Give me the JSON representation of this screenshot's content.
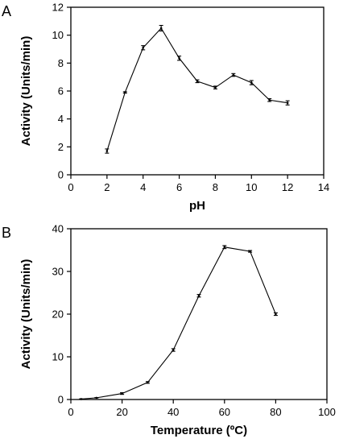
{
  "chart_data": [
    {
      "panel": "A",
      "type": "line",
      "xlabel": "pH",
      "ylabel": "Activity (Units/min)",
      "xlim": [
        0,
        14
      ],
      "ylim": [
        0,
        12
      ],
      "xticks": [
        "0",
        "2",
        "4",
        "6",
        "8",
        "10",
        "12",
        "14"
      ],
      "yticks": [
        "0",
        "2",
        "4",
        "6",
        "8",
        "10",
        "12"
      ],
      "grid": false,
      "series": [
        {
          "x": [
            2,
            3,
            4,
            5,
            6,
            7,
            8,
            9,
            10,
            11,
            12
          ],
          "y": [
            1.7,
            5.9,
            9.1,
            10.5,
            8.35,
            6.7,
            6.25,
            7.15,
            6.6,
            5.35,
            5.15
          ],
          "error": [
            0.15,
            0.05,
            0.15,
            0.2,
            0.15,
            0.1,
            0.1,
            0.1,
            0.15,
            0.1,
            0.15
          ]
        }
      ]
    },
    {
      "panel": "B",
      "type": "line",
      "xlabel": "Temperature (ºC)",
      "ylabel": "Activity (Units/min)",
      "xlim": [
        0,
        100
      ],
      "ylim": [
        0,
        40
      ],
      "xticks": [
        "0",
        "20",
        "40",
        "60",
        "80",
        "100"
      ],
      "yticks": [
        "0",
        "10",
        "20",
        "30",
        "40"
      ],
      "grid": false,
      "series": [
        {
          "x": [
            4,
            10,
            20,
            30,
            40,
            50,
            60,
            70,
            80
          ],
          "y": [
            0.1,
            0.4,
            1.4,
            4.0,
            11.6,
            24.3,
            35.7,
            34.7,
            20.0
          ],
          "error": [
            0.05,
            0.05,
            0.2,
            0.2,
            0.3,
            0.3,
            0.35,
            0.2,
            0.3
          ]
        }
      ]
    }
  ]
}
